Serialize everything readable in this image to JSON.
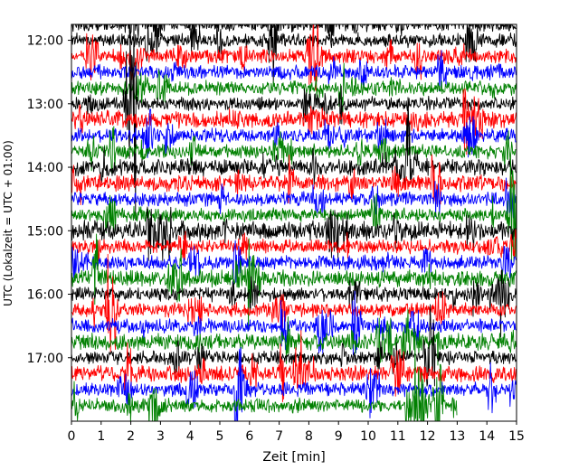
{
  "chart_data": {
    "type": "line",
    "title": "",
    "xlabel": "Zeit  [min]",
    "ylabel": "UTC (Lokalzeit = UTC + 01:00)",
    "xlim": [
      0,
      15
    ],
    "ylim": [
      "11:45",
      "18:00"
    ],
    "y_inverted": true,
    "grid": false,
    "legend": "none",
    "x_ticks": [
      "0",
      "1",
      "2",
      "3",
      "4",
      "5",
      "6",
      "7",
      "8",
      "9",
      "10",
      "11",
      "12",
      "13",
      "14",
      "15"
    ],
    "y_ticks": [
      "12:00",
      "13:00",
      "14:00",
      "15:00",
      "16:00",
      "17:00"
    ],
    "trace_interval_min": 15,
    "color_cycle": [
      "#000000",
      "#ff0000",
      "#0000ff",
      "#008000"
    ],
    "traces": [
      {
        "start": "11:45",
        "color": "#000000",
        "amplitude": 0.5,
        "end_min": 15
      },
      {
        "start": "12:00",
        "color": "#000000",
        "amplitude": 0.5,
        "end_min": 15
      },
      {
        "start": "12:15",
        "color": "#ff0000",
        "amplitude": 0.5,
        "end_min": 15
      },
      {
        "start": "12:30",
        "color": "#0000ff",
        "amplitude": 0.5,
        "end_min": 15
      },
      {
        "start": "12:45",
        "color": "#008000",
        "amplitude": 0.5,
        "end_min": 15
      },
      {
        "start": "13:00",
        "color": "#000000",
        "amplitude": 0.5,
        "end_min": 15
      },
      {
        "start": "13:15",
        "color": "#ff0000",
        "amplitude": 0.6,
        "end_min": 15
      },
      {
        "start": "13:30",
        "color": "#0000ff",
        "amplitude": 0.5,
        "end_min": 15
      },
      {
        "start": "13:45",
        "color": "#008000",
        "amplitude": 0.5,
        "end_min": 15
      },
      {
        "start": "14:00",
        "color": "#000000",
        "amplitude": 0.6,
        "end_min": 15
      },
      {
        "start": "14:15",
        "color": "#ff0000",
        "amplitude": 0.6,
        "end_min": 15
      },
      {
        "start": "14:30",
        "color": "#0000ff",
        "amplitude": 0.5,
        "end_min": 15
      },
      {
        "start": "14:45",
        "color": "#008000",
        "amplitude": 0.5,
        "end_min": 15
      },
      {
        "start": "15:00",
        "color": "#000000",
        "amplitude": 0.7,
        "end_min": 15
      },
      {
        "start": "15:15",
        "color": "#ff0000",
        "amplitude": 0.5,
        "end_min": 15
      },
      {
        "start": "15:30",
        "color": "#0000ff",
        "amplitude": 0.5,
        "end_min": 15
      },
      {
        "start": "15:45",
        "color": "#008000",
        "amplitude": 0.6,
        "end_min": 15
      },
      {
        "start": "16:00",
        "color": "#000000",
        "amplitude": 0.5,
        "end_min": 15
      },
      {
        "start": "16:15",
        "color": "#ff0000",
        "amplitude": 0.5,
        "end_min": 15
      },
      {
        "start": "16:30",
        "color": "#0000ff",
        "amplitude": 0.5,
        "end_min": 15
      },
      {
        "start": "16:45",
        "color": "#008000",
        "amplitude": 0.6,
        "end_min": 15
      },
      {
        "start": "17:00",
        "color": "#000000",
        "amplitude": 0.5,
        "end_min": 15
      },
      {
        "start": "17:15",
        "color": "#ff0000",
        "amplitude": 0.6,
        "end_min": 15
      },
      {
        "start": "17:30",
        "color": "#0000ff",
        "amplitude": 0.5,
        "end_min": 15
      },
      {
        "start": "17:45",
        "color": "#008000",
        "amplitude": 0.5,
        "end_min": 13
      }
    ]
  }
}
